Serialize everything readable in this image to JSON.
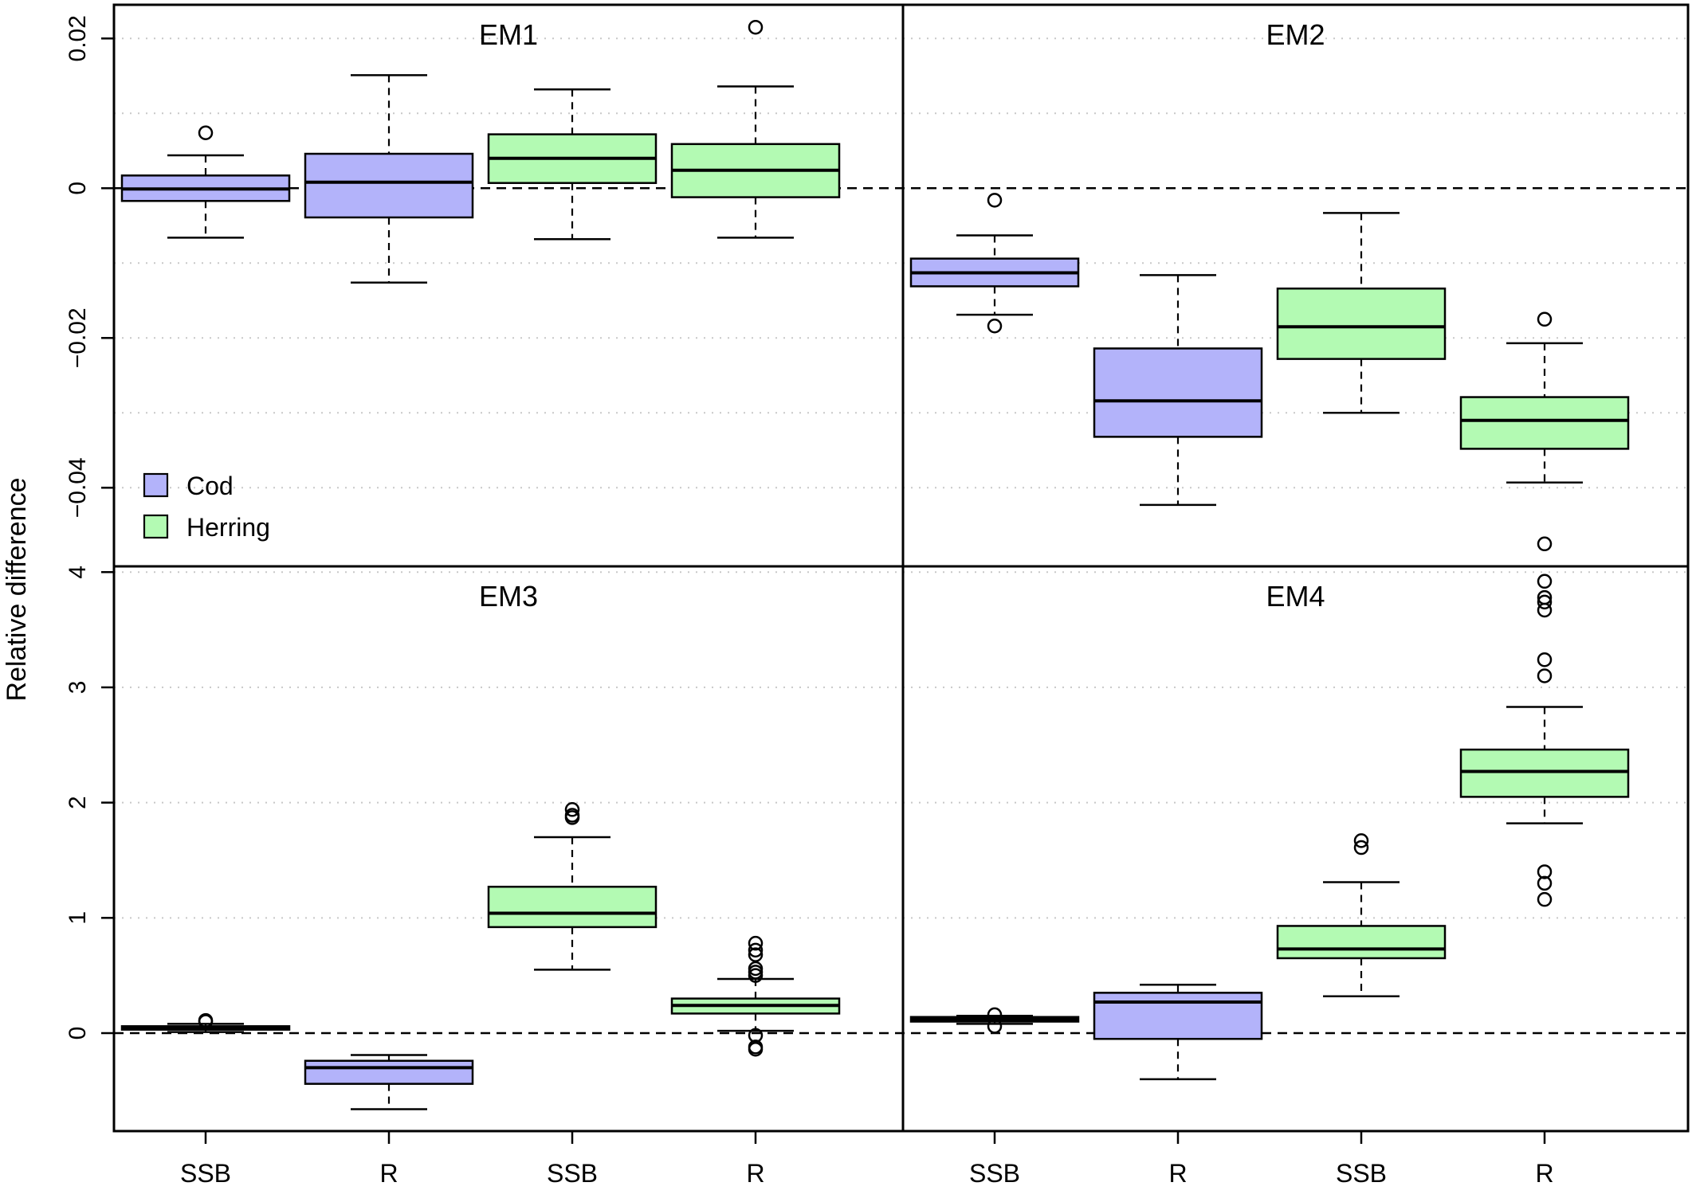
{
  "chart_data": {
    "type": "boxplot",
    "ylabel": "Relative difference",
    "legend": {
      "placement": "bottom-left of panel EM1",
      "entries": [
        {
          "name": "Cod",
          "color": "#b3b3fa"
        },
        {
          "name": "Herring",
          "color": "#b3fab3"
        }
      ]
    },
    "categories": [
      "SSB",
      "R",
      "SSB",
      "R"
    ],
    "category_species": [
      "Cod",
      "Cod",
      "Herring",
      "Herring"
    ],
    "colors": {
      "Cod": "#b3b3fa",
      "Herring": "#b3fab3"
    },
    "rows": [
      {
        "ylim": [
          -0.0505,
          0.0245
        ],
        "ticks": [
          -0.04,
          -0.02,
          0,
          0.02
        ],
        "tick_labels": [
          "−0.04",
          "−0.02",
          "0",
          "0.02"
        ],
        "grid": [
          -0.04,
          -0.03,
          -0.02,
          -0.01,
          0.01,
          0.02
        ]
      },
      {
        "ylim": [
          -0.85,
          4.05
        ],
        "ticks": [
          0,
          1,
          2,
          3,
          4
        ],
        "tick_labels": [
          "0",
          "1",
          "2",
          "3",
          "4"
        ],
        "grid": [
          1,
          2,
          3,
          4
        ]
      }
    ],
    "panels": [
      {
        "title": "EM1",
        "row": 0,
        "col": 0,
        "boxes": [
          {
            "q1": -0.0017,
            "median": -0.0001,
            "q3": 0.0017,
            "whisker_low": -0.0066,
            "whisker_high": 0.0044,
            "outliers": [
              0.0074
            ]
          },
          {
            "q1": -0.0039,
            "median": 0.0008,
            "q3": 0.0046,
            "whisker_low": -0.0126,
            "whisker_high": 0.0151,
            "outliers": []
          },
          {
            "q1": 0.0007,
            "median": 0.004,
            "q3": 0.0072,
            "whisker_low": -0.0068,
            "whisker_high": 0.0132,
            "outliers": []
          },
          {
            "q1": -0.0012,
            "median": 0.0024,
            "q3": 0.0059,
            "whisker_low": -0.0066,
            "whisker_high": 0.0136,
            "outliers": [
              0.0215
            ]
          }
        ]
      },
      {
        "title": "EM2",
        "row": 0,
        "col": 1,
        "boxes": [
          {
            "q1": -0.0131,
            "median": -0.0113,
            "q3": -0.0094,
            "whisker_low": -0.0169,
            "whisker_high": -0.0063,
            "outliers": [
              -0.0016,
              -0.0184
            ]
          },
          {
            "q1": -0.0332,
            "median": -0.0284,
            "q3": -0.0214,
            "whisker_low": -0.0423,
            "whisker_high": -0.0116,
            "outliers": []
          },
          {
            "q1": -0.0228,
            "median": -0.0185,
            "q3": -0.0134,
            "whisker_low": -0.03,
            "whisker_high": -0.0033,
            "outliers": []
          },
          {
            "q1": -0.0348,
            "median": -0.031,
            "q3": -0.0279,
            "whisker_low": -0.0393,
            "whisker_high": -0.0207,
            "outliers": [
              -0.0175,
              -0.0475
            ]
          }
        ]
      },
      {
        "title": "EM3",
        "row": 1,
        "col": 0,
        "boxes": [
          {
            "q1": 0.03,
            "median": 0.05,
            "q3": 0.06,
            "whisker_low": 0.01,
            "whisker_high": 0.08,
            "outliers": [
              0.1,
              0.11
            ]
          },
          {
            "q1": -0.44,
            "median": -0.3,
            "q3": -0.24,
            "whisker_low": -0.66,
            "whisker_high": -0.19,
            "outliers": []
          },
          {
            "q1": 0.92,
            "median": 1.04,
            "q3": 1.27,
            "whisker_low": 0.55,
            "whisker_high": 1.7,
            "outliers": [
              1.87,
              1.89,
              1.94
            ]
          },
          {
            "q1": 0.17,
            "median": 0.24,
            "q3": 0.3,
            "whisker_low": 0.02,
            "whisker_high": 0.47,
            "outliers": [
              0.5,
              0.53,
              0.56,
              0.68,
              0.72,
              0.78,
              -0.02,
              -0.12,
              -0.14
            ]
          }
        ]
      },
      {
        "title": "EM4",
        "row": 1,
        "col": 1,
        "boxes": [
          {
            "q1": 0.1,
            "median": 0.12,
            "q3": 0.14,
            "whisker_low": 0.08,
            "whisker_high": 0.15,
            "outliers": [
              0.06,
              0.16
            ]
          },
          {
            "q1": -0.05,
            "median": 0.27,
            "q3": 0.35,
            "whisker_low": -0.4,
            "whisker_high": 0.42,
            "outliers": []
          },
          {
            "q1": 0.65,
            "median": 0.73,
            "q3": 0.93,
            "whisker_low": 0.32,
            "whisker_high": 1.31,
            "outliers": [
              1.61,
              1.67
            ]
          },
          {
            "q1": 2.05,
            "median": 2.27,
            "q3": 2.46,
            "whisker_low": 1.82,
            "whisker_high": 2.83,
            "outliers": [
              3.1,
              3.24,
              3.67,
              3.74,
              3.78,
              3.92,
              1.16,
              1.3,
              1.4
            ]
          }
        ]
      }
    ]
  }
}
